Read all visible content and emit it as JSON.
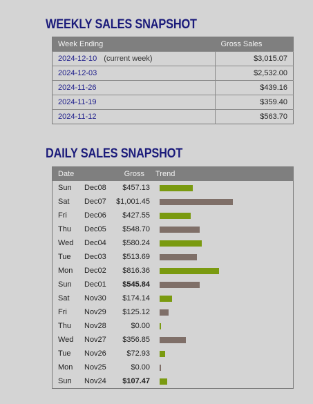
{
  "weekly": {
    "title": "WEEKLY SALES SNAPSHOT",
    "headers": {
      "week_ending": "Week Ending",
      "gross_sales": "Gross Sales"
    },
    "rows": [
      {
        "date": "2024-12-10",
        "note": "(current week)",
        "sales": "$3,015.07"
      },
      {
        "date": "2024-12-03",
        "note": "",
        "sales": "$2,532.00"
      },
      {
        "date": "2024-11-26",
        "note": "",
        "sales": "$439.16"
      },
      {
        "date": "2024-11-19",
        "note": "",
        "sales": "$359.40"
      },
      {
        "date": "2024-11-12",
        "note": "",
        "sales": "$563.70"
      }
    ]
  },
  "daily": {
    "title": "DAILY SALES SNAPSHOT",
    "headers": {
      "date": "Date",
      "gross": "Gross",
      "trend": "Trend"
    },
    "colors": {
      "green": "#7a9a10",
      "brown": "#7f6f68"
    },
    "rows": [
      {
        "dow": "Sun",
        "day": "Dec08",
        "gross": "$457.13",
        "value": 457.13,
        "color": "green",
        "bold": false
      },
      {
        "dow": "Sat",
        "day": "Dec07",
        "gross": "$1,001.45",
        "value": 1001.45,
        "color": "brown",
        "bold": false
      },
      {
        "dow": "Fri",
        "day": "Dec06",
        "gross": "$427.55",
        "value": 427.55,
        "color": "green",
        "bold": false
      },
      {
        "dow": "Thu",
        "day": "Dec05",
        "gross": "$548.70",
        "value": 548.7,
        "color": "brown",
        "bold": false
      },
      {
        "dow": "Wed",
        "day": "Dec04",
        "gross": "$580.24",
        "value": 580.24,
        "color": "green",
        "bold": false
      },
      {
        "dow": "Tue",
        "day": "Dec03",
        "gross": "$513.69",
        "value": 513.69,
        "color": "brown",
        "bold": false
      },
      {
        "dow": "Mon",
        "day": "Dec02",
        "gross": "$816.36",
        "value": 816.36,
        "color": "green",
        "bold": false
      },
      {
        "dow": "Sun",
        "day": "Dec01",
        "gross": "$545.84",
        "value": 545.84,
        "color": "brown",
        "bold": true
      },
      {
        "dow": "Sat",
        "day": "Nov30",
        "gross": "$174.14",
        "value": 174.14,
        "color": "green",
        "bold": false
      },
      {
        "dow": "Fri",
        "day": "Nov29",
        "gross": "$125.12",
        "value": 125.12,
        "color": "brown",
        "bold": false
      },
      {
        "dow": "Thu",
        "day": "Nov28",
        "gross": "$0.00",
        "value": 0,
        "color": "green",
        "bold": false
      },
      {
        "dow": "Wed",
        "day": "Nov27",
        "gross": "$356.85",
        "value": 356.85,
        "color": "brown",
        "bold": false
      },
      {
        "dow": "Tue",
        "day": "Nov26",
        "gross": "$72.93",
        "value": 72.93,
        "color": "green",
        "bold": false
      },
      {
        "dow": "Mon",
        "day": "Nov25",
        "gross": "$0.00",
        "value": 0,
        "color": "brown",
        "bold": false
      },
      {
        "dow": "Sun",
        "day": "Nov24",
        "gross": "$107.47",
        "value": 107.47,
        "color": "green",
        "bold": true
      }
    ]
  }
}
